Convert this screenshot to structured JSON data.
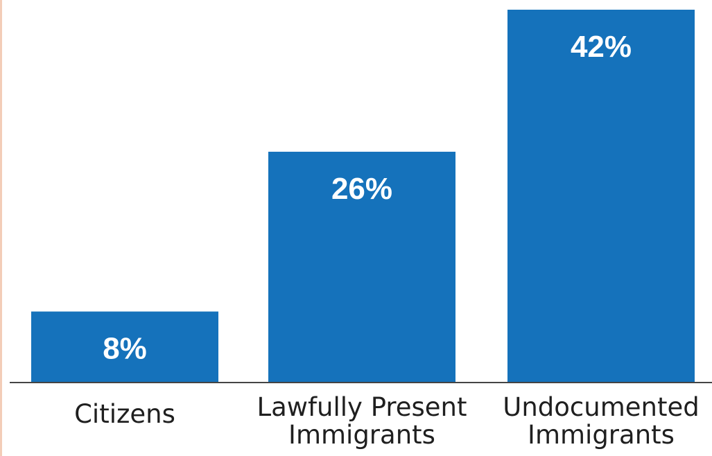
{
  "chart_data": {
    "type": "bar",
    "categories": [
      [
        "Citizens"
      ],
      [
        "Lawfully Present",
        "Immigrants"
      ],
      [
        "Undocumented",
        "Immigrants"
      ]
    ],
    "values": [
      8,
      26,
      42
    ],
    "value_labels": [
      "8%",
      "26%",
      "42%"
    ],
    "unit": "%",
    "ylim": [
      0,
      42
    ],
    "grid": false,
    "legend": "none",
    "colors": {
      "bar": "#1572bb",
      "axis": "#444444",
      "text": "#1f1f1f",
      "label": "#ffffff"
    }
  }
}
